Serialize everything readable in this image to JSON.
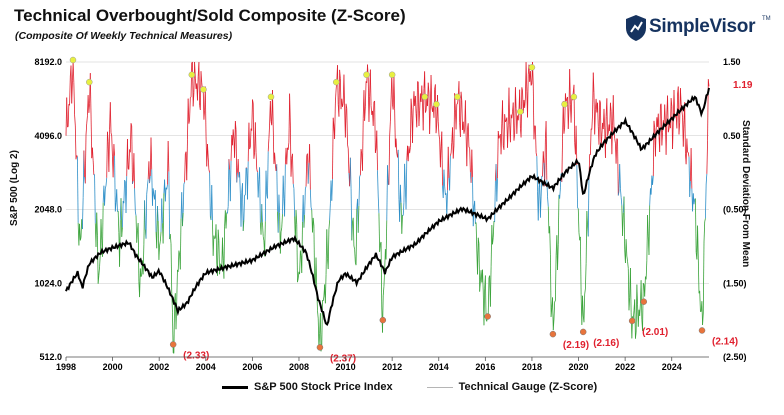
{
  "title": "Technical Overbought/Sold Composite (Z-Score)",
  "subtitle": "(Composite Of Weekly Technical Measures)",
  "brand": {
    "name": "SimpleVisor",
    "tm": "TM",
    "color": "#16335f"
  },
  "colors": {
    "overbought": "#e0202e",
    "neutral": "#2e8fc8",
    "oversold": "#3aa33a",
    "price": "#000000",
    "annotation": "#e0202e",
    "peak_marker": "#e8f040",
    "trough_marker": "#e8743c",
    "grid": "#c8c8c8"
  },
  "chart_data": {
    "type": "line",
    "title": "Technical Overbought/Sold Composite (Z-Score)",
    "subtitle": "(Composite Of Weekly Technical Measures)",
    "xlabel": "",
    "ylabel_left": "S&P 500 (Log 2)",
    "ylabel_right": "Standard Deviation From Mean",
    "x_range": [
      1998,
      2025.6
    ],
    "x_ticks": [
      "1998",
      "2000",
      "2002",
      "2004",
      "2006",
      "2008",
      "2010",
      "2012",
      "2014",
      "2016",
      "2018",
      "2020",
      "2022",
      "2024"
    ],
    "y_left": {
      "scale": "log2",
      "range": [
        512,
        8192
      ],
      "ticks": [
        "512.0",
        "1024.0",
        "2048.0",
        "4096.0",
        "8192.0"
      ]
    },
    "y_right": {
      "range": [
        -2.5,
        1.5
      ],
      "ticks": [
        "1.50",
        "0.50",
        "(0.50)",
        "(1.50)",
        "(2.50)"
      ]
    },
    "grid": true,
    "legend_position": "bottom",
    "series": [
      {
        "name": "S&P 500 Stock Price Index",
        "axis": "left",
        "points": [
          [
            1998.0,
            950
          ],
          [
            1998.5,
            1130
          ],
          [
            1998.7,
            980
          ],
          [
            1999.0,
            1230
          ],
          [
            1999.5,
            1370
          ],
          [
            2000.0,
            1430
          ],
          [
            2000.7,
            1500
          ],
          [
            2001.0,
            1330
          ],
          [
            2001.7,
            1080
          ],
          [
            2002.0,
            1150
          ],
          [
            2002.5,
            920
          ],
          [
            2002.8,
            790
          ],
          [
            2003.2,
            850
          ],
          [
            2003.6,
            1000
          ],
          [
            2004.0,
            1130
          ],
          [
            2005.0,
            1200
          ],
          [
            2006.0,
            1270
          ],
          [
            2007.0,
            1450
          ],
          [
            2007.8,
            1560
          ],
          [
            2008.3,
            1370
          ],
          [
            2008.8,
            900
          ],
          [
            2009.2,
            680
          ],
          [
            2009.7,
            1050
          ],
          [
            2010.0,
            1120
          ],
          [
            2010.5,
            1030
          ],
          [
            2011.3,
            1340
          ],
          [
            2011.7,
            1130
          ],
          [
            2012.0,
            1310
          ],
          [
            2013.0,
            1480
          ],
          [
            2014.0,
            1830
          ],
          [
            2015.0,
            2060
          ],
          [
            2016.1,
            1870
          ],
          [
            2017.0,
            2270
          ],
          [
            2018.0,
            2800
          ],
          [
            2018.9,
            2500
          ],
          [
            2019.5,
            2950
          ],
          [
            2020.0,
            3250
          ],
          [
            2020.2,
            2300
          ],
          [
            2020.7,
            3400
          ],
          [
            2021.0,
            3750
          ],
          [
            2022.0,
            4700
          ],
          [
            2022.7,
            3600
          ],
          [
            2023.0,
            3850
          ],
          [
            2024.0,
            4800
          ],
          [
            2025.0,
            5900
          ],
          [
            2025.3,
            5000
          ],
          [
            2025.6,
            6400
          ]
        ]
      },
      {
        "name": "Technical Gauge (Z-Score)",
        "axis": "right",
        "points": [
          [
            1998.0,
            0.5
          ],
          [
            1998.3,
            1.5
          ],
          [
            1998.6,
            -1.1
          ],
          [
            1999.0,
            1.2
          ],
          [
            1999.4,
            -1.4
          ],
          [
            1999.9,
            0.7
          ],
          [
            2000.3,
            -0.9
          ],
          [
            2000.8,
            0.5
          ],
          [
            2001.2,
            -1.6
          ],
          [
            2001.6,
            0.2
          ],
          [
            2002.0,
            -1.0
          ],
          [
            2002.4,
            0.1
          ],
          [
            2002.6,
            -2.33
          ],
          [
            2003.0,
            -0.5
          ],
          [
            2003.4,
            1.3
          ],
          [
            2003.9,
            1.1
          ],
          [
            2004.3,
            -0.8
          ],
          [
            2004.7,
            -1.3
          ],
          [
            2005.2,
            0.6
          ],
          [
            2005.6,
            -0.6
          ],
          [
            2006.0,
            0.8
          ],
          [
            2006.5,
            -1.0
          ],
          [
            2006.8,
            1.0
          ],
          [
            2007.2,
            -0.9
          ],
          [
            2007.6,
            0.7
          ],
          [
            2008.0,
            -1.5
          ],
          [
            2008.4,
            0.3
          ],
          [
            2008.9,
            -2.37
          ],
          [
            2009.3,
            -0.8
          ],
          [
            2009.6,
            1.2
          ],
          [
            2010.0,
            0.9
          ],
          [
            2010.4,
            -1.2
          ],
          [
            2010.9,
            1.3
          ],
          [
            2011.3,
            0.6
          ],
          [
            2011.6,
            -2.0
          ],
          [
            2012.0,
            1.3
          ],
          [
            2012.4,
            -0.7
          ],
          [
            2012.9,
            0.9
          ],
          [
            2013.4,
            1.0
          ],
          [
            2013.9,
            0.9
          ],
          [
            2014.3,
            -0.4
          ],
          [
            2014.8,
            1.0
          ],
          [
            2015.3,
            0.4
          ],
          [
            2015.7,
            -1.2
          ],
          [
            2016.1,
            -1.95
          ],
          [
            2016.6,
            0.5
          ],
          [
            2017.0,
            0.7
          ],
          [
            2017.5,
            0.8
          ],
          [
            2018.0,
            1.4
          ],
          [
            2018.3,
            -0.5
          ],
          [
            2018.6,
            0.4
          ],
          [
            2018.9,
            -2.19
          ],
          [
            2019.4,
            0.9
          ],
          [
            2019.8,
            1.0
          ],
          [
            2020.2,
            -2.16
          ],
          [
            2020.6,
            1.0
          ],
          [
            2021.0,
            0.6
          ],
          [
            2021.5,
            0.7
          ],
          [
            2022.0,
            -0.9
          ],
          [
            2022.3,
            -2.01
          ],
          [
            2022.8,
            -1.75
          ],
          [
            2023.3,
            0.6
          ],
          [
            2023.9,
            0.7
          ],
          [
            2024.4,
            0.9
          ],
          [
            2025.0,
            -0.5
          ],
          [
            2025.3,
            -2.14
          ],
          [
            2025.6,
            1.19
          ]
        ]
      }
    ],
    "peak_markers": [
      1998.3,
      1999.0,
      2003.4,
      2003.9,
      2006.8,
      2009.6,
      2010.9,
      2012.0,
      2013.4,
      2013.9,
      2014.8,
      2017.5,
      2018.0,
      2019.4,
      2019.8
    ],
    "trough_markers": [
      {
        "x": 2002.6,
        "label": "(2.33)"
      },
      {
        "x": 2008.9,
        "label": "(2.37)"
      },
      {
        "x": 2011.6,
        "label": ""
      },
      {
        "x": 2016.1,
        "label": ""
      },
      {
        "x": 2018.9,
        "label": "(2.19)"
      },
      {
        "x": 2020.2,
        "label": "(2.16)"
      },
      {
        "x": 2022.3,
        "label": "(2.01)"
      },
      {
        "x": 2022.8,
        "label": ""
      },
      {
        "x": 2025.3,
        "label": "(2.14)"
      }
    ],
    "last_value_label": "1.19"
  }
}
